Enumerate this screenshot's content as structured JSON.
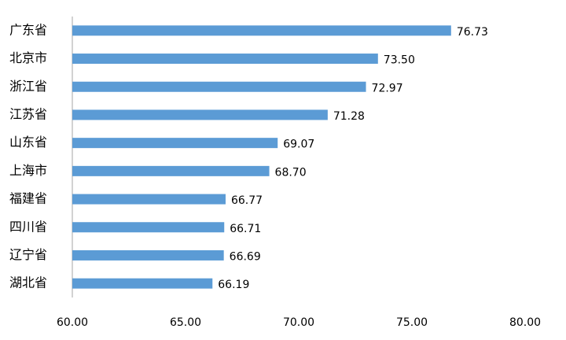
{
  "chart_data": {
    "type": "hbar",
    "categories": [
      "广东省",
      "北京市",
      "浙江省",
      "江苏省",
      "山东省",
      "上海市",
      "福建省",
      "四川省",
      "辽宁省",
      "湖北省"
    ],
    "values": [
      76.73,
      73.5,
      72.97,
      71.28,
      69.07,
      68.7,
      66.77,
      66.71,
      66.69,
      66.19
    ],
    "value_labels": [
      "76.73",
      "73.50",
      "72.97",
      "71.28",
      "69.07",
      "68.70",
      "66.77",
      "66.71",
      "66.69",
      "66.19"
    ],
    "color": "#5b9bd5",
    "xlim": [
      60,
      80
    ],
    "xticks": [
      {
        "value": 60,
        "label": "60.00"
      },
      {
        "value": 65,
        "label": "65.00"
      },
      {
        "value": 70,
        "label": "70.00"
      },
      {
        "value": 75,
        "label": "75.00"
      },
      {
        "value": 80,
        "label": "80.00"
      }
    ],
    "grid": false
  }
}
